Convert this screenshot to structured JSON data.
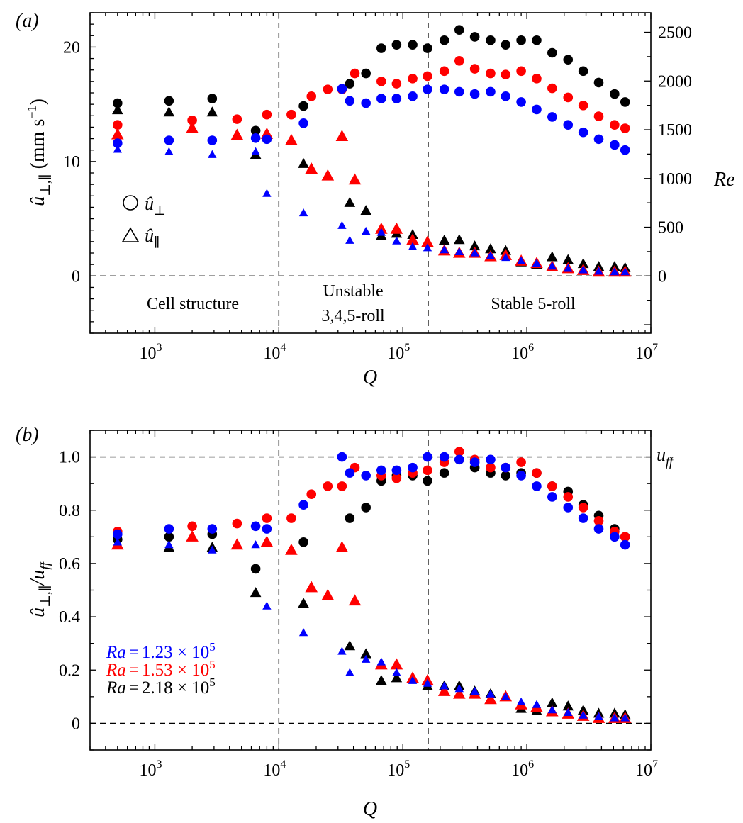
{
  "chart_data": [
    {
      "type": "scatter",
      "panel_label": "(a)",
      "xlabel": "Q",
      "xscale": "log",
      "xlim": [
        300,
        10000000
      ],
      "xticks": [
        1000,
        10000,
        100000,
        1000000,
        10000000
      ],
      "xtick_labels": [
        {
          "base": "10",
          "exp": "3"
        },
        {
          "base": "10",
          "exp": "4"
        },
        {
          "base": "10",
          "exp": "5"
        },
        {
          "base": "10",
          "exp": "6"
        },
        {
          "base": "10",
          "exp": "7"
        }
      ],
      "ylabel": {
        "main": "û",
        "sub": "⊥,∥",
        "rest": " (mm s",
        "sup": "−1",
        "close": ")"
      },
      "ylim": [
        -5,
        23
      ],
      "yticks": [
        0,
        10,
        20
      ],
      "ytick_labels": [
        "0",
        "10",
        "20"
      ],
      "y2label": "Re",
      "y2lim": [
        -587,
        2700
      ],
      "y2ticks": [
        0,
        500,
        1000,
        1500,
        2000,
        2500
      ],
      "y2tick_labels": [
        "0",
        "500",
        "1000",
        "1500",
        "2000",
        "2500"
      ],
      "hlines": [
        0
      ],
      "vlines": [
        10000,
        160000
      ],
      "grid": false,
      "region_labels": {
        "cell": "Cell structure",
        "unstable_1": "Unstable",
        "unstable_2": "3,4,5-roll",
        "stable": "Stable 5-roll"
      },
      "legend": {
        "position": "left",
        "items": [
          {
            "marker": "circle",
            "main": "û",
            "sub": "⊥"
          },
          {
            "marker": "triangle",
            "main": "û",
            "sub": "∥"
          }
        ]
      },
      "series": [
        {
          "ra": "2.18 × 10^5",
          "quantity": "û⊥",
          "color": "#000000",
          "marker": "circle",
          "Q": [
            500,
            1300,
            2900,
            6500,
            15800,
            37300,
            50400,
            67000,
            89000,
            120000,
            158000,
            216000,
            285000,
            380000,
            510000,
            675000,
            900000,
            1200000,
            1600000,
            2150000,
            2850000,
            3800000,
            5100000,
            6200000
          ],
          "values": [
            15.1,
            15.3,
            15.5,
            12.7,
            14.85,
            16.8,
            17.7,
            19.9,
            20.2,
            20.2,
            19.9,
            20.6,
            21.5,
            20.9,
            20.6,
            20.2,
            20.6,
            20.6,
            19.5,
            18.9,
            17.9,
            16.9,
            15.9,
            15.2
          ]
        },
        {
          "ra": "2.18 × 10^5",
          "quantity": "û∥",
          "color": "#000000",
          "marker": "triangle",
          "Q": [
            500,
            1300,
            2900,
            6500,
            15800,
            37300,
            50400,
            67000,
            89000,
            120000,
            158000,
            216000,
            285000,
            380000,
            510000,
            675000,
            900000,
            1200000,
            1600000,
            2150000,
            2850000,
            3800000,
            5100000,
            6200000
          ],
          "values": [
            14.5,
            14.3,
            14.3,
            10.6,
            9.8,
            6.4,
            5.7,
            3.5,
            3.7,
            3.6,
            2.95,
            3.1,
            3.15,
            2.6,
            2.35,
            2.2,
            1.2,
            1.0,
            1.65,
            1.4,
            1.05,
            0.8,
            0.8,
            0.7
          ]
        },
        {
          "ra": "1.53 × 10^5",
          "quantity": "û⊥",
          "color": "#ff0000",
          "marker": "circle",
          "Q": [
            500,
            2000,
            4600,
            8000,
            12600,
            18300,
            24800,
            32300,
            41000,
            67000,
            89000,
            120000,
            158000,
            216000,
            285000,
            380000,
            510000,
            675000,
            900000,
            1200000,
            1600000,
            2150000,
            2850000,
            3800000,
            5100000,
            6200000
          ],
          "values": [
            13.2,
            13.6,
            13.7,
            14.1,
            14.1,
            15.7,
            16.3,
            16.3,
            17.7,
            17.0,
            16.8,
            17.25,
            17.46,
            17.9,
            18.8,
            18.1,
            17.7,
            17.6,
            17.9,
            17.25,
            16.4,
            15.6,
            14.9,
            13.95,
            13.2,
            12.9
          ]
        },
        {
          "ra": "1.53 × 10^5",
          "quantity": "û∥",
          "color": "#ff0000",
          "marker": "triangle",
          "Q": [
            500,
            2000,
            4600,
            8000,
            12600,
            18300,
            24800,
            32300,
            41000,
            67000,
            89000,
            120000,
            158000,
            216000,
            285000,
            380000,
            510000,
            675000,
            900000,
            1200000,
            1600000,
            2150000,
            2850000,
            3800000,
            5100000,
            6200000
          ],
          "values": [
            12.35,
            12.9,
            12.3,
            12.4,
            11.85,
            9.35,
            8.75,
            12.2,
            8.4,
            4.1,
            4.1,
            3.15,
            2.95,
            2.2,
            2.0,
            2.0,
            1.7,
            1.8,
            1.3,
            1.1,
            0.8,
            0.65,
            0.5,
            0.35,
            0.35,
            0.35
          ]
        },
        {
          "ra": "1.23 × 10^5",
          "quantity": "û⊥",
          "color": "#0000ff",
          "marker": "circle",
          "Q": [
            500,
            1300,
            2900,
            6500,
            8000,
            15800,
            32300,
            37300,
            50400,
            67000,
            89000,
            120000,
            158000,
            216000,
            285000,
            380000,
            510000,
            675000,
            900000,
            1200000,
            1600000,
            2150000,
            2850000,
            3800000,
            5100000,
            6200000
          ],
          "values": [
            11.6,
            11.85,
            11.85,
            12.05,
            11.95,
            13.35,
            16.35,
            15.3,
            15.1,
            15.5,
            15.5,
            15.7,
            16.3,
            16.3,
            16.1,
            15.9,
            16.1,
            15.7,
            15.2,
            14.55,
            13.9,
            13.2,
            12.55,
            11.95,
            11.45,
            11.0
          ]
        },
        {
          "ra": "1.23 × 10^5",
          "quantity": "û∥",
          "color": "#0000ff",
          "marker": "triangle-small",
          "Q": [
            500,
            1300,
            2900,
            6500,
            8000,
            15800,
            32300,
            37300,
            50400,
            67000,
            89000,
            120000,
            158000,
            216000,
            285000,
            380000,
            510000,
            675000,
            900000,
            1200000,
            1600000,
            2150000,
            2850000,
            3800000,
            5100000,
            6200000
          ],
          "values": [
            11.05,
            10.85,
            10.6,
            10.85,
            7.2,
            5.5,
            4.4,
            3.1,
            3.9,
            3.8,
            3.05,
            2.55,
            2.45,
            2.27,
            2.1,
            2.0,
            1.75,
            1.6,
            1.3,
            1.1,
            0.85,
            0.65,
            0.52,
            0.4,
            0.35,
            0.35
          ]
        }
      ]
    },
    {
      "type": "scatter",
      "panel_label": "(b)",
      "xlabel": "Q",
      "xscale": "log",
      "xlim": [
        300,
        10000000
      ],
      "xticks": [
        1000,
        10000,
        100000,
        1000000,
        10000000
      ],
      "xtick_labels": [
        {
          "base": "10",
          "exp": "3"
        },
        {
          "base": "10",
          "exp": "4"
        },
        {
          "base": "10",
          "exp": "5"
        },
        {
          "base": "10",
          "exp": "6"
        },
        {
          "base": "10",
          "exp": "7"
        }
      ],
      "ylabel": {
        "main": "û",
        "sub": "⊥,∥",
        "rest": "/u",
        "sub2": "ff"
      },
      "ylim": [
        -0.1,
        1.1
      ],
      "yticks": [
        0,
        0.2,
        0.4,
        0.6,
        0.8,
        1.0
      ],
      "ytick_labels": [
        "0",
        "0.2",
        "0.4",
        "0.6",
        "0.8",
        "1.0"
      ],
      "hlines": [
        0,
        1.0
      ],
      "hline_label": {
        "main": "u",
        "sub": "ff"
      },
      "vlines": [
        10000,
        160000
      ],
      "grid": false,
      "legend": {
        "position": "bottom-left",
        "items": [
          {
            "var": "Ra",
            "eq": "=",
            "value": "1.23 × 10",
            "exp": "5",
            "color": "#0000ff"
          },
          {
            "var": "Ra",
            "eq": "=",
            "value": "1.53 × 10",
            "exp": "5",
            "color": "#ff0000"
          },
          {
            "var": "Ra",
            "eq": "=",
            "value": "2.18 × 10",
            "exp": "5",
            "color": "#000000"
          }
        ]
      },
      "series": [
        {
          "ra": "2.18 × 10^5",
          "quantity": "û⊥/uff",
          "color": "#000000",
          "marker": "circle",
          "Q": [
            500,
            1300,
            2900,
            6500,
            15800,
            37300,
            50400,
            67000,
            89000,
            120000,
            158000,
            216000,
            285000,
            380000,
            510000,
            675000,
            900000,
            1200000,
            1600000,
            2150000,
            2850000,
            3800000,
            5100000,
            6200000
          ],
          "values": [
            0.69,
            0.7,
            0.71,
            0.58,
            0.68,
            0.77,
            0.81,
            0.91,
            0.93,
            0.93,
            0.91,
            0.94,
            0.99,
            0.96,
            0.94,
            0.93,
            0.94,
            0.94,
            0.89,
            0.87,
            0.82,
            0.78,
            0.73,
            0.7
          ]
        },
        {
          "ra": "2.18 × 10^5",
          "quantity": "û∥/uff",
          "color": "#000000",
          "marker": "triangle",
          "Q": [
            500,
            1300,
            2900,
            6500,
            15800,
            37300,
            50400,
            67000,
            89000,
            120000,
            158000,
            216000,
            285000,
            380000,
            510000,
            675000,
            900000,
            1200000,
            1600000,
            2150000,
            2850000,
            3800000,
            5100000,
            6200000
          ],
          "values": [
            0.67,
            0.66,
            0.66,
            0.49,
            0.45,
            0.29,
            0.26,
            0.16,
            0.17,
            0.17,
            0.14,
            0.14,
            0.14,
            0.12,
            0.11,
            0.1,
            0.055,
            0.046,
            0.076,
            0.064,
            0.048,
            0.037,
            0.037,
            0.032
          ]
        },
        {
          "ra": "1.53 × 10^5",
          "quantity": "û⊥/uff",
          "color": "#ff0000",
          "marker": "circle",
          "Q": [
            500,
            2000,
            4600,
            8000,
            12600,
            18300,
            24800,
            32300,
            41000,
            67000,
            89000,
            120000,
            158000,
            216000,
            285000,
            380000,
            510000,
            675000,
            900000,
            1200000,
            1600000,
            2150000,
            2850000,
            3800000,
            5100000,
            6200000
          ],
          "values": [
            0.72,
            0.74,
            0.75,
            0.77,
            0.77,
            0.86,
            0.89,
            0.89,
            0.96,
            0.93,
            0.92,
            0.94,
            0.95,
            0.98,
            1.02,
            0.99,
            0.96,
            0.96,
            0.98,
            0.94,
            0.89,
            0.85,
            0.81,
            0.76,
            0.72,
            0.7
          ]
        },
        {
          "ra": "1.53 × 10^5",
          "quantity": "û∥/uff",
          "color": "#ff0000",
          "marker": "triangle",
          "Q": [
            500,
            2000,
            4600,
            8000,
            12600,
            18300,
            24800,
            32300,
            41000,
            67000,
            89000,
            120000,
            158000,
            216000,
            285000,
            380000,
            510000,
            675000,
            900000,
            1200000,
            1600000,
            2150000,
            2850000,
            3800000,
            5100000,
            6200000
          ],
          "values": [
            0.67,
            0.7,
            0.67,
            0.68,
            0.65,
            0.51,
            0.48,
            0.66,
            0.46,
            0.22,
            0.22,
            0.17,
            0.16,
            0.12,
            0.11,
            0.11,
            0.09,
            0.1,
            0.07,
            0.06,
            0.044,
            0.035,
            0.027,
            0.019,
            0.019,
            0.019
          ]
        },
        {
          "ra": "1.23 × 10^5",
          "quantity": "û⊥/uff",
          "color": "#0000ff",
          "marker": "circle",
          "Q": [
            500,
            1300,
            2900,
            6500,
            8000,
            15800,
            32300,
            37300,
            50400,
            67000,
            89000,
            120000,
            158000,
            216000,
            285000,
            380000,
            510000,
            675000,
            900000,
            1200000,
            1600000,
            2150000,
            2850000,
            3800000,
            5100000,
            6200000
          ],
          "values": [
            0.71,
            0.73,
            0.73,
            0.74,
            0.73,
            0.82,
            1.0,
            0.94,
            0.93,
            0.95,
            0.95,
            0.96,
            1.0,
            1.0,
            0.99,
            0.98,
            0.99,
            0.96,
            0.93,
            0.89,
            0.85,
            0.81,
            0.77,
            0.73,
            0.7,
            0.67
          ]
        },
        {
          "ra": "1.23 × 10^5",
          "quantity": "û∥/uff",
          "color": "#0000ff",
          "marker": "triangle-small",
          "Q": [
            500,
            1300,
            2900,
            6500,
            8000,
            15800,
            32300,
            37300,
            50400,
            67000,
            89000,
            120000,
            158000,
            216000,
            285000,
            380000,
            510000,
            675000,
            900000,
            1200000,
            1600000,
            2150000,
            2850000,
            3800000,
            5100000,
            6200000
          ],
          "values": [
            0.68,
            0.67,
            0.65,
            0.67,
            0.44,
            0.34,
            0.27,
            0.19,
            0.24,
            0.23,
            0.19,
            0.16,
            0.15,
            0.14,
            0.13,
            0.12,
            0.11,
            0.1,
            0.08,
            0.07,
            0.05,
            0.04,
            0.03,
            0.025,
            0.02,
            0.02
          ]
        }
      ]
    }
  ]
}
